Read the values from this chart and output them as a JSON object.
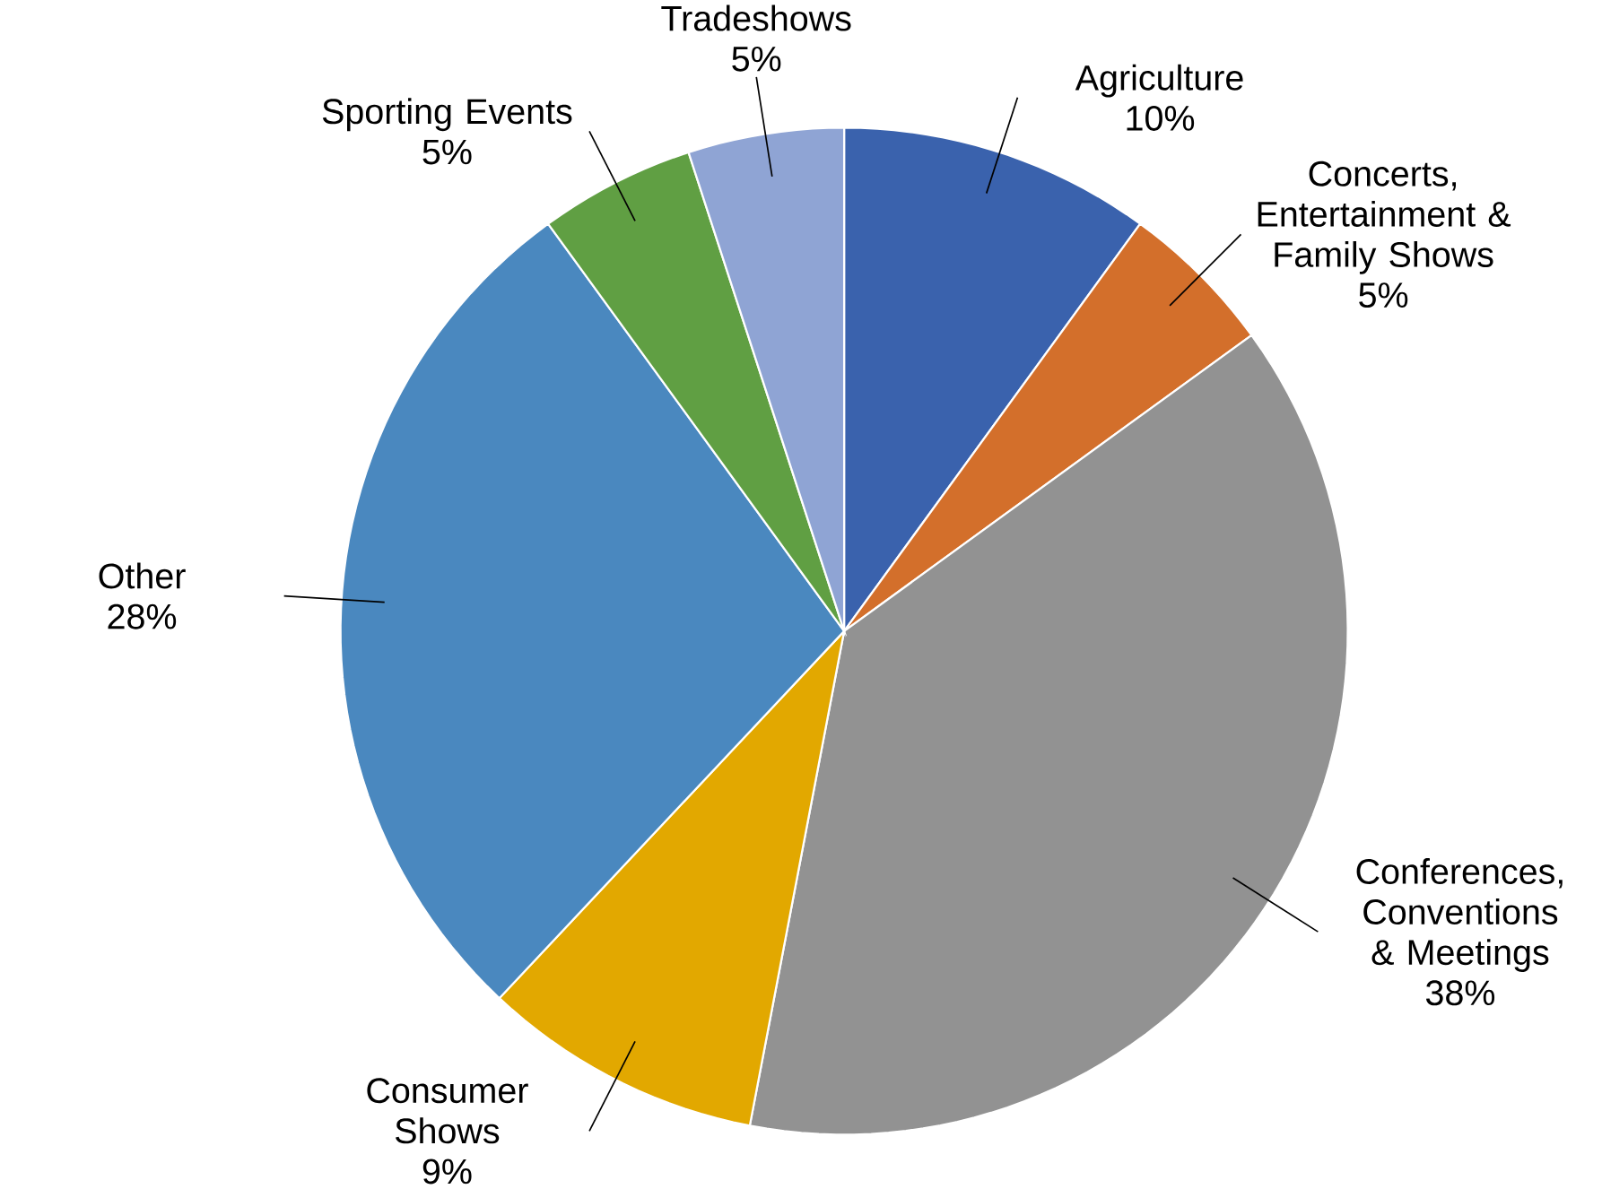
{
  "chart_data": {
    "type": "pie",
    "categories": [
      "Agriculture",
      "Concerts, Entertainment & Family Shows",
      "Conferences, Conventions & Meetings",
      "Consumer Shows",
      "Other",
      "Sporting Events",
      "Tradeshows"
    ],
    "values": [
      10,
      5,
      38,
      9,
      28,
      5,
      5
    ],
    "value_labels": [
      "10%",
      "5%",
      "38%",
      "9%",
      "28%",
      "5%",
      "5%"
    ],
    "colors": [
      "#3a62ad",
      "#d36f2b",
      "#929292",
      "#e2a800",
      "#4a88bf",
      "#609f43",
      "#8fa4d4"
    ]
  }
}
